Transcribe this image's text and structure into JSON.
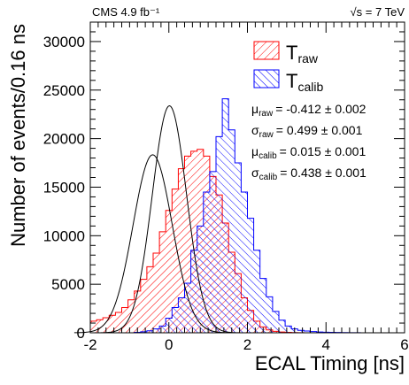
{
  "chart_data": {
    "type": "histogram",
    "header_left": "CMS 4.9 fb⁻¹",
    "header_right": "√s = 7 TeV",
    "xlabel": "ECAL Timing [ns]",
    "ylabel": "Number of events/0.16 ns",
    "xlim": [
      -2,
      6
    ],
    "ylim": [
      0,
      32000
    ],
    "xticks": [
      "-2",
      "0",
      "2",
      "4",
      "6"
    ],
    "yticks": [
      "0",
      "5000",
      "10000",
      "15000",
      "20000",
      "25000",
      "30000"
    ],
    "bin_width": 0.16,
    "x_start": -2.0,
    "grid": false,
    "legend_position": "top-right",
    "series": [
      {
        "name": "T",
        "name_sub": "raw",
        "color": "#ff0000",
        "hatch": "single-diagonal",
        "mu": -0.412,
        "sigma": 0.499,
        "values": [
          1200,
          1350,
          1550,
          1800,
          2100,
          2600,
          3400,
          4300,
          5500,
          6800,
          8200,
          10400,
          12600,
          14800,
          16900,
          18200,
          18700,
          18900,
          18200,
          16100,
          14200,
          11300,
          8300,
          6100,
          3600,
          2300,
          1200,
          600,
          300,
          150,
          80,
          40,
          20,
          10,
          5,
          5,
          0,
          0,
          0,
          0,
          0,
          0,
          0,
          0,
          0,
          0,
          0,
          0,
          0,
          0
        ]
      },
      {
        "name": "T",
        "name_sub": "calib",
        "color": "#0000ff",
        "hatch": "single-diagonal-reverse",
        "mu": 0.015,
        "sigma": 0.438,
        "values": [
          0,
          0,
          0,
          0,
          0,
          0,
          0,
          50,
          100,
          200,
          400,
          700,
          1500,
          2600,
          3600,
          5100,
          8500,
          11000,
          14500,
          16600,
          20200,
          24100,
          20900,
          17500,
          14500,
          11800,
          8500,
          5600,
          3700,
          2200,
          1300,
          700,
          400,
          250,
          180,
          120,
          80,
          60,
          40,
          30,
          20,
          15,
          10,
          5,
          0,
          0,
          0,
          0,
          0,
          0
        ]
      }
    ],
    "stats": [
      {
        "symbol": "μ",
        "sub": "raw",
        "value": "= -0.412 ± 0.002"
      },
      {
        "symbol": "σ",
        "sub": "raw",
        "value": "= 0.499 ± 0.001"
      },
      {
        "symbol": "μ",
        "sub": "calib",
        "value": "= 0.015 ± 0.001"
      },
      {
        "symbol": "σ",
        "sub": "calib",
        "value": "= 0.438 ± 0.001"
      }
    ]
  }
}
